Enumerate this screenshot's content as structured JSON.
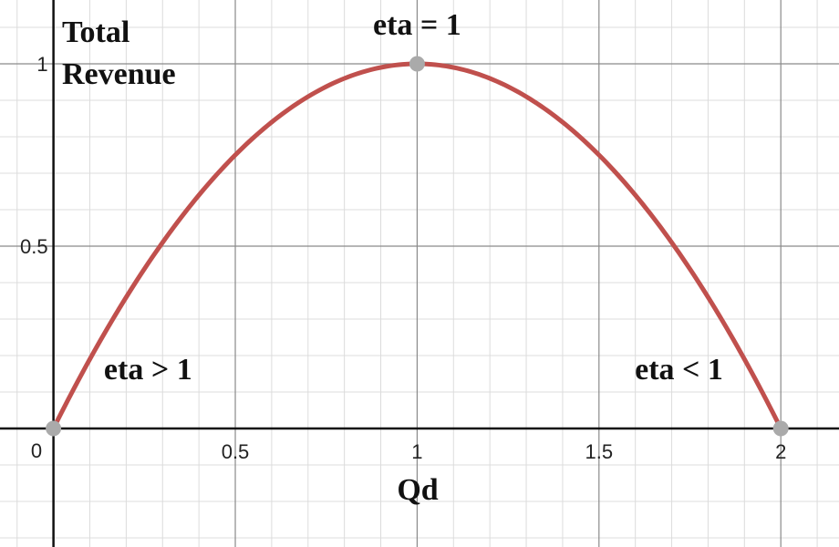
{
  "chart_data": {
    "type": "line",
    "title": "",
    "ylabel_lines": [
      "Total",
      "Revenue"
    ],
    "xlabel": "Qd",
    "xlim": [
      -0.147,
      2.16
    ],
    "ylim": [
      -0.325,
      1.175
    ],
    "x_ticks": [
      {
        "value": 0.5,
        "label": "0.5"
      },
      {
        "value": 1,
        "label": "1"
      },
      {
        "value": 1.5,
        "label": "1.5"
      },
      {
        "value": 2,
        "label": "2"
      }
    ],
    "y_ticks": [
      {
        "value": 0.5,
        "label": "0.5"
      },
      {
        "value": 1,
        "label": "1"
      }
    ],
    "origin_label": "0",
    "grid": true,
    "minor_grid_step": 0.1,
    "major_grid_step": 0.5,
    "series": [
      {
        "color": "#c0504d",
        "x": [
          0,
          0.1,
          0.2,
          0.3,
          0.4,
          0.5,
          0.6,
          0.7,
          0.8,
          0.9,
          1.0,
          1.1,
          1.2,
          1.3,
          1.4,
          1.5,
          1.6,
          1.7,
          1.8,
          1.9,
          2.0
        ],
        "y": [
          0,
          0.19,
          0.36,
          0.51,
          0.64,
          0.75,
          0.84,
          0.91,
          0.96,
          0.99,
          1.0,
          0.99,
          0.96,
          0.91,
          0.84,
          0.75,
          0.64,
          0.51,
          0.36,
          0.19,
          0
        ]
      }
    ],
    "points": [
      {
        "x": 0,
        "y": 0
      },
      {
        "x": 1,
        "y": 1
      },
      {
        "x": 2,
        "y": 0
      }
    ],
    "point_color": "#aaaaaa",
    "annotations": [
      {
        "text": "eta = 1",
        "x": 1.0,
        "y": 1.08
      },
      {
        "text": "eta > 1",
        "x": 0.26,
        "y": 0.135
      },
      {
        "text": "eta < 1",
        "x": 1.72,
        "y": 0.135
      }
    ]
  }
}
